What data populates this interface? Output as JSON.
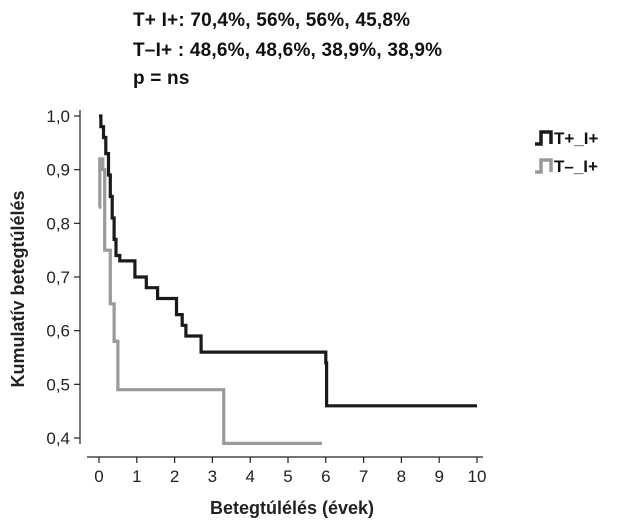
{
  "annotations": [
    "T+ I+: 70,4%, 56%, 56%, 45,8%",
    "T–I+ : 48,6%, 48,6%, 38,9%, 38,9%",
    "p = ns"
  ],
  "chart_data": {
    "type": "line",
    "xlabel": "Betegtúlélés (évek)",
    "ylabel": "Kumulatív betegtúlélés",
    "xlim": [
      0,
      10
    ],
    "ylim": [
      0.4,
      1.0
    ],
    "x_ticks": [
      0,
      1,
      2,
      3,
      4,
      5,
      6,
      7,
      8,
      9,
      10
    ],
    "y_ticks": [
      0.4,
      0.5,
      0.6,
      0.7,
      0.8,
      0.9,
      1.0
    ],
    "x_tick_labels": [
      "0",
      "1",
      "2",
      "3",
      "4",
      "5",
      "6",
      "7",
      "8",
      "9",
      "10"
    ],
    "y_tick_labels": [
      "0,4",
      "0,5",
      "0,6",
      "0,7",
      "0,8",
      "0,9",
      "1,0"
    ],
    "legend_position": "top-right",
    "series": [
      {
        "name": "T+_I+",
        "color": "#1a1a1a",
        "step": true,
        "points": [
          [
            0,
            1.0
          ],
          [
            0.05,
            0.98
          ],
          [
            0.12,
            0.96
          ],
          [
            0.18,
            0.93
          ],
          [
            0.25,
            0.89
          ],
          [
            0.3,
            0.85
          ],
          [
            0.35,
            0.81
          ],
          [
            0.4,
            0.77
          ],
          [
            0.45,
            0.74
          ],
          [
            0.55,
            0.73
          ],
          [
            0.95,
            0.7
          ],
          [
            1.25,
            0.68
          ],
          [
            1.55,
            0.66
          ],
          [
            2.05,
            0.63
          ],
          [
            2.2,
            0.61
          ],
          [
            2.3,
            0.59
          ],
          [
            2.7,
            0.56
          ],
          [
            6.0,
            0.54
          ],
          [
            6.02,
            0.46
          ],
          [
            10.0,
            0.46
          ]
        ]
      },
      {
        "name": "T–_I+",
        "color": "#9a9a9a",
        "step": true,
        "points": [
          [
            0,
            0.83
          ],
          [
            0.02,
            0.92
          ],
          [
            0.1,
            0.9
          ],
          [
            0.15,
            0.75
          ],
          [
            0.3,
            0.65
          ],
          [
            0.4,
            0.58
          ],
          [
            0.5,
            0.49
          ],
          [
            3.3,
            0.39
          ],
          [
            5.9,
            0.39
          ]
        ]
      }
    ]
  }
}
